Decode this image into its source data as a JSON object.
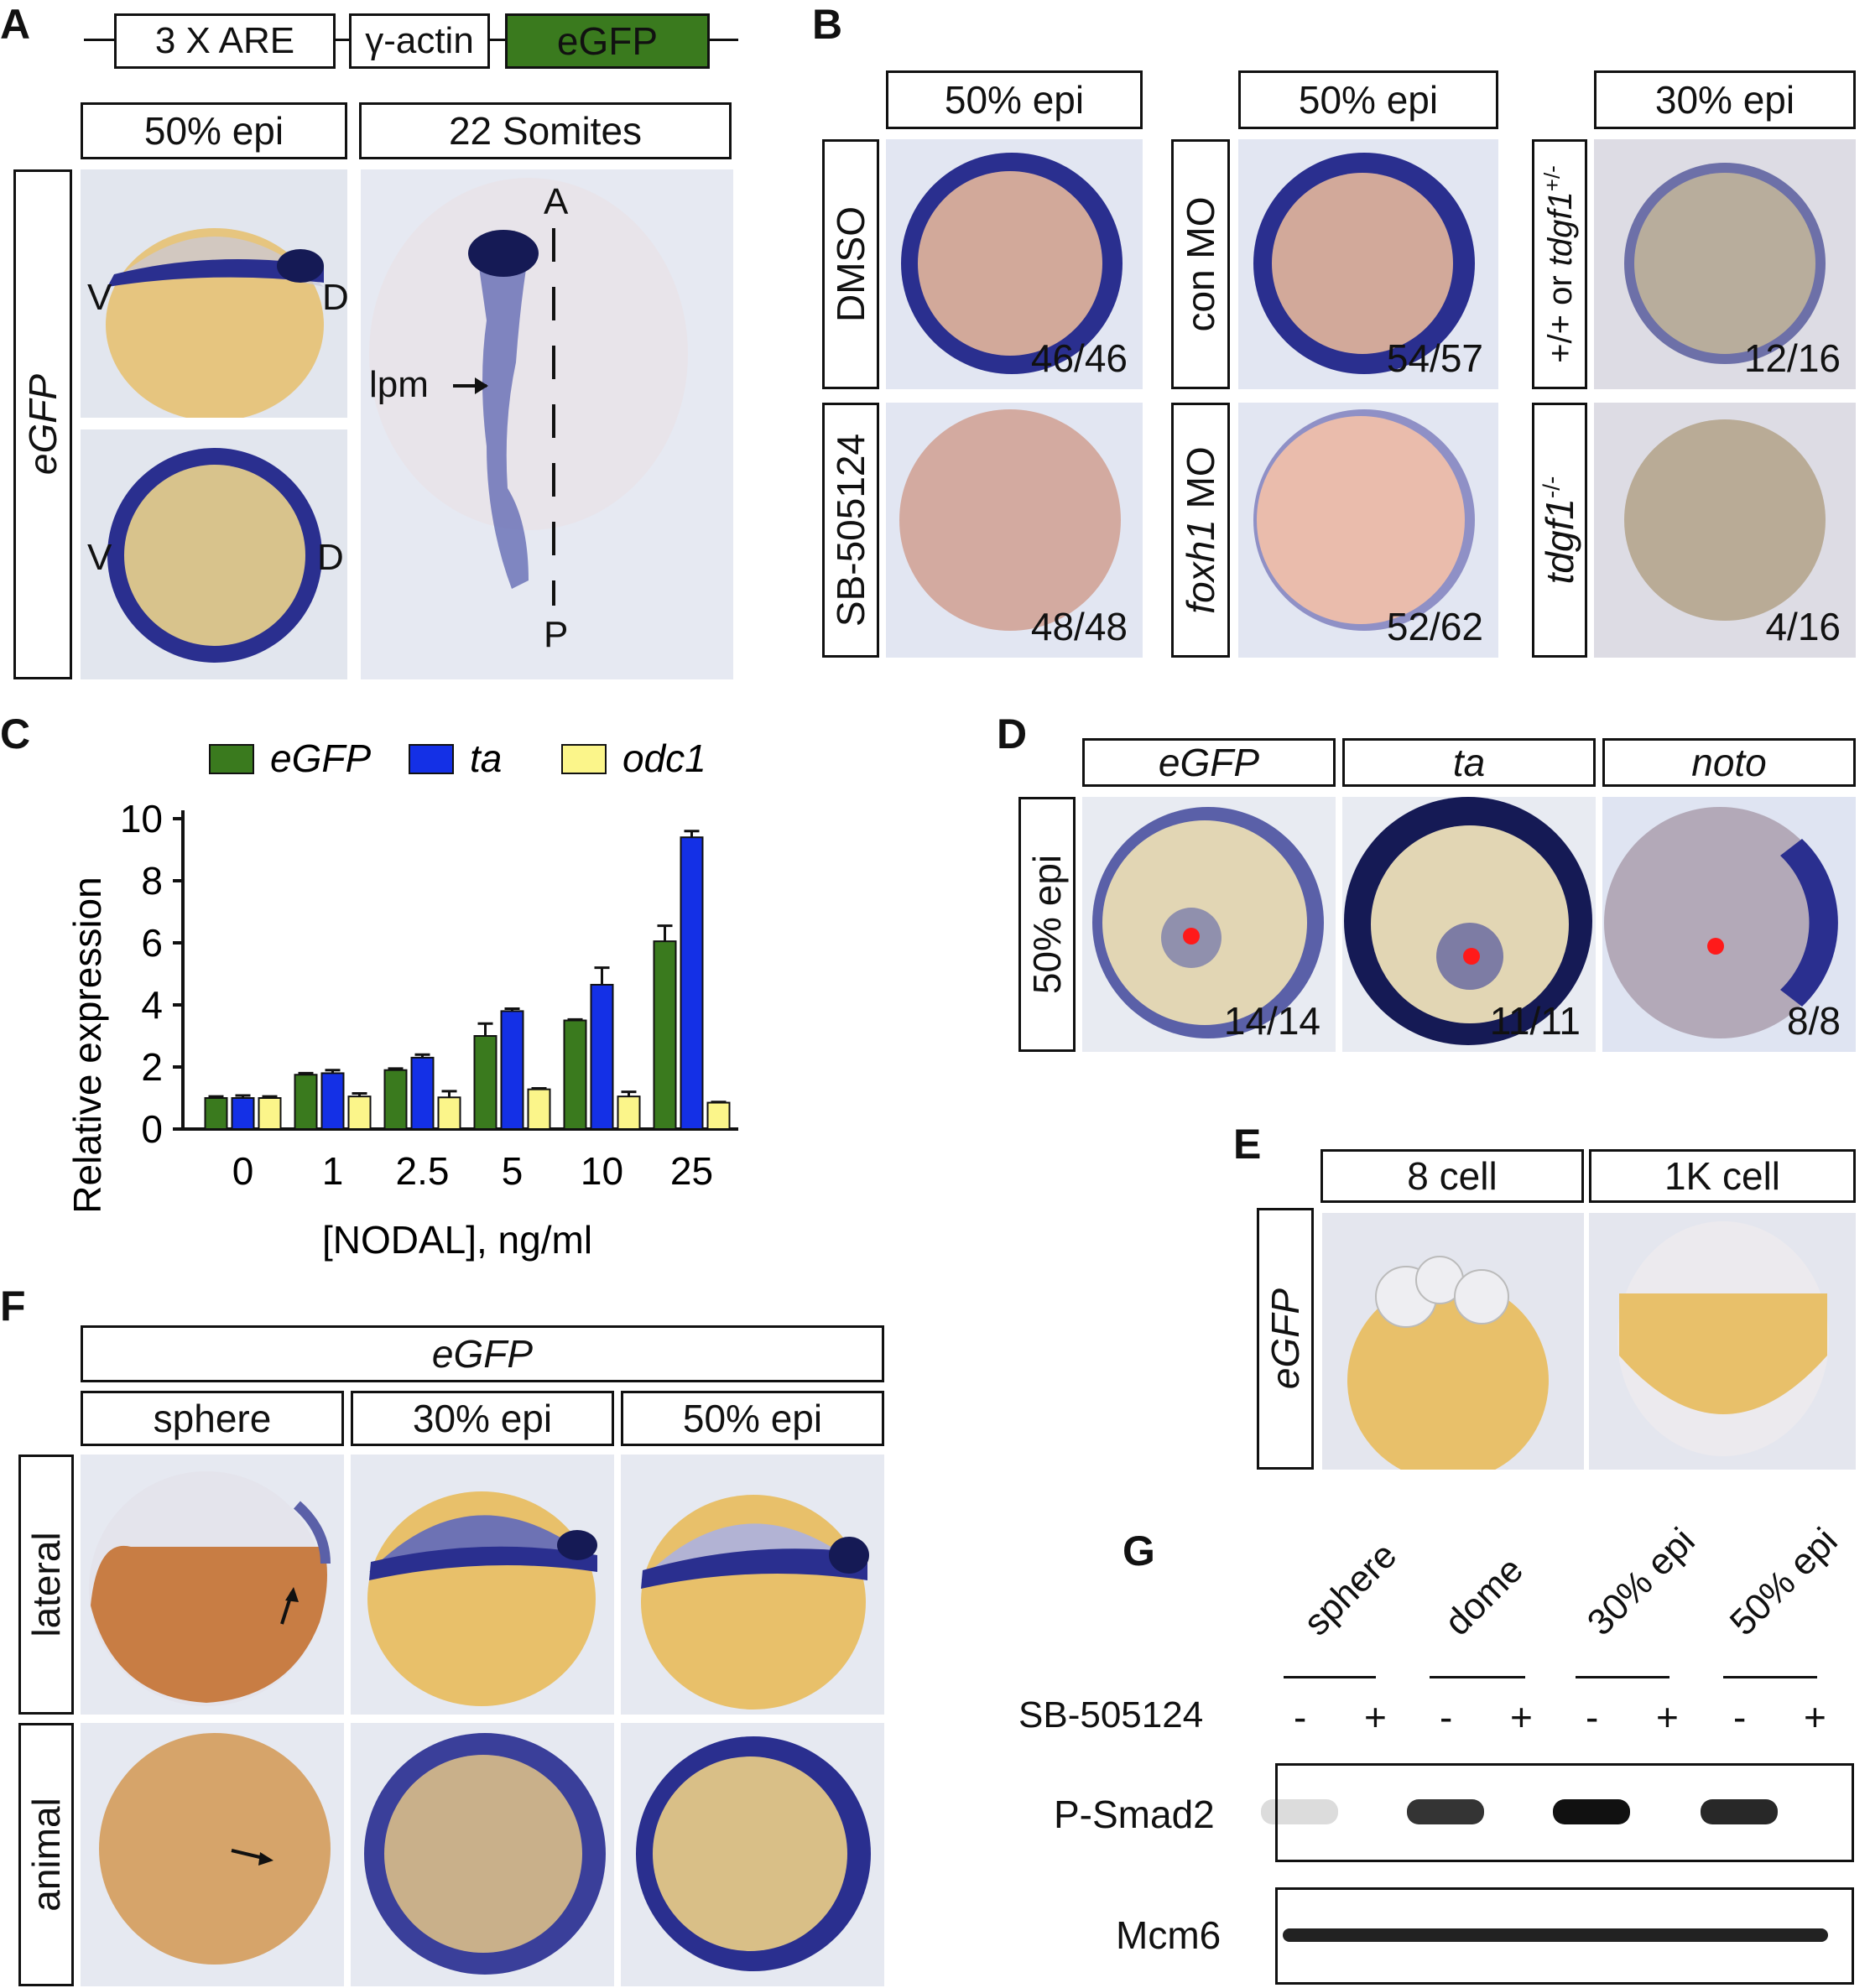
{
  "panel_letters": [
    "A",
    "B",
    "C",
    "D",
    "E",
    "F",
    "G"
  ],
  "panelA": {
    "construct": [
      "3 X ARE",
      "γ-actin",
      "eGFP"
    ],
    "stage_headers": [
      "50% epi",
      "22 Somites"
    ],
    "row_label": "eGFP",
    "top_V": "V",
    "top_D": "D",
    "bot_V": "V",
    "bot_D": "D",
    "axis_A": "A",
    "axis_P": "P",
    "lpm": "lpm"
  },
  "panelB": {
    "headers": [
      "50% epi",
      "50% epi",
      "30% epi"
    ],
    "row_labels": [
      "DMSO",
      "SB-505124",
      "con MO",
      "foxh1 MO",
      "+/+ or tdgf1+/-",
      "tdgf1-/-"
    ],
    "foxh1_gene": "foxh1",
    "foxh1_suffix": " MO",
    "wt_prefix": "+/+ or ",
    "tdgf1_gene": "tdgf1",
    "het_sup": "+/-",
    "hom_sup": "-/-",
    "counts": [
      "46/46",
      "48/48",
      "54/57",
      "52/62",
      "12/16",
      "4/16"
    ]
  },
  "chart_data": {
    "type": "bar",
    "categories": [
      "0",
      "1",
      "2.5",
      "5",
      "10",
      "25"
    ],
    "series": [
      {
        "name": "eGFP",
        "color": "#3a7a1e",
        "values": [
          1.0,
          1.75,
          1.9,
          3.0,
          3.5,
          6.05
        ],
        "errors": [
          0.05,
          0.05,
          0.05,
          0.4,
          0.03,
          0.5
        ]
      },
      {
        "name": "ta",
        "color": "#1430e6",
        "values": [
          1.0,
          1.8,
          2.3,
          3.8,
          4.65,
          9.4
        ],
        "errors": [
          0.08,
          0.1,
          0.1,
          0.08,
          0.55,
          0.2
        ]
      },
      {
        "name": "odc1",
        "color": "#fbf58a",
        "values": [
          1.0,
          1.05,
          1.02,
          1.28,
          1.05,
          0.85
        ],
        "errors": [
          0.05,
          0.1,
          0.2,
          0.03,
          0.15,
          0.02
        ]
      }
    ],
    "xlabel": "[NODAL], ng/ml",
    "ylabel": "Relative expression",
    "yticks": [
      "0",
      "2",
      "4",
      "6",
      "8",
      "10"
    ],
    "ylim": [
      0,
      10
    ],
    "legend": "top"
  },
  "panelD": {
    "headers": [
      "eGFP",
      "ta",
      "noto"
    ],
    "row_label": "50% epi",
    "counts": [
      "14/14",
      "11/11",
      "8/8"
    ]
  },
  "panelE": {
    "headers": [
      "8 cell",
      "1K cell"
    ],
    "row_label": "eGFP"
  },
  "panelF": {
    "gene": "eGFP",
    "stages": [
      "sphere",
      "30% epi",
      "50% epi"
    ],
    "rows": [
      "lateral",
      "animal"
    ]
  },
  "panelG": {
    "stages": [
      "sphere",
      "dome",
      "30% epi",
      "50% epi"
    ],
    "treatment": "SB-505124",
    "signs": [
      "-",
      "+",
      "-",
      "+",
      "-",
      "+",
      "-",
      "+"
    ],
    "blots": [
      "P-Smad2",
      "Mcm6"
    ],
    "psmad2_levels": [
      0.15,
      0.0,
      0.85,
      0.0,
      1.0,
      0.0,
      0.9,
      0.0
    ],
    "mcm6_levels": [
      1,
      1,
      1,
      1,
      1,
      1,
      1,
      1
    ]
  },
  "colors": {
    "stain_blue": "#2a2f8f",
    "yolk": "#e6c98a",
    "background": "#e3e7f0",
    "egfp_box": "#3a7a1e",
    "red_dot": "#ff1a1a"
  }
}
